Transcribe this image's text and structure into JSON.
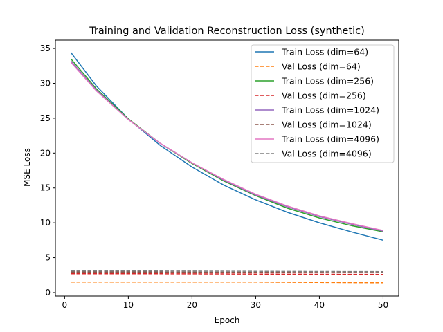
{
  "chart_data": {
    "type": "line",
    "title": "Training and Validation Reconstruction Loss (synthetic)",
    "xlabel": "Epoch",
    "ylabel": "MSE Loss",
    "xlim": [
      -1.45,
      52.45
    ],
    "ylim": [
      -0.5,
      36.2
    ],
    "xticks": [
      0,
      10,
      20,
      30,
      40,
      50
    ],
    "yticks": [
      0,
      5,
      10,
      15,
      20,
      25,
      30,
      35
    ],
    "grid": false,
    "legend_position": "top-right",
    "series": [
      {
        "name": "Train Loss (dim=64)",
        "style": "solid",
        "color": "#1f77b4",
        "x": [
          1,
          5,
          10,
          15,
          20,
          25,
          30,
          35,
          40,
          45,
          50
        ],
        "y": [
          34.4,
          29.6,
          24.9,
          21.1,
          18.0,
          15.4,
          13.3,
          11.5,
          10.0,
          8.7,
          7.5
        ]
      },
      {
        "name": "Val Loss (dim=64)",
        "style": "dashed",
        "color": "#ff7f0e",
        "x": [
          1,
          10,
          20,
          30,
          40,
          50
        ],
        "y": [
          1.5,
          1.5,
          1.5,
          1.5,
          1.45,
          1.4
        ]
      },
      {
        "name": "Train Loss (dim=256)",
        "style": "solid",
        "color": "#2ca02c",
        "x": [
          1,
          5,
          10,
          15,
          20,
          25,
          30,
          35,
          40,
          45,
          50
        ],
        "y": [
          33.5,
          29.2,
          24.9,
          21.4,
          18.5,
          16.0,
          13.9,
          12.1,
          10.7,
          9.6,
          8.7
        ]
      },
      {
        "name": "Val Loss (dim=256)",
        "style": "dashed",
        "color": "#d62728",
        "x": [
          1,
          10,
          20,
          30,
          40,
          50
        ],
        "y": [
          2.7,
          2.7,
          2.68,
          2.65,
          2.62,
          2.6
        ]
      },
      {
        "name": "Train Loss (dim=1024)",
        "style": "solid",
        "color": "#9467bd",
        "x": [
          1,
          5,
          10,
          15,
          20,
          25,
          30,
          35,
          40,
          45,
          50
        ],
        "y": [
          33.2,
          29.0,
          24.8,
          21.4,
          18.6,
          16.1,
          14.0,
          12.3,
          10.9,
          9.8,
          8.8
        ]
      },
      {
        "name": "Val Loss (dim=1024)",
        "style": "dashed",
        "color": "#8c564b",
        "x": [
          1,
          10,
          20,
          30,
          40,
          50
        ],
        "y": [
          2.95,
          2.95,
          2.93,
          2.9,
          2.88,
          2.85
        ]
      },
      {
        "name": "Train Loss (dim=4096)",
        "style": "solid",
        "color": "#e377c2",
        "x": [
          1,
          5,
          10,
          15,
          20,
          25,
          30,
          35,
          40,
          45,
          50
        ],
        "y": [
          33.0,
          28.9,
          24.8,
          21.4,
          18.6,
          16.2,
          14.1,
          12.4,
          11.0,
          9.9,
          8.9
        ]
      },
      {
        "name": "Val Loss (dim=4096)",
        "style": "dashed",
        "color": "#7f7f7f",
        "x": [
          1,
          10,
          20,
          30,
          40,
          50
        ],
        "y": [
          3.1,
          3.1,
          3.08,
          3.05,
          3.02,
          3.0
        ]
      }
    ]
  }
}
